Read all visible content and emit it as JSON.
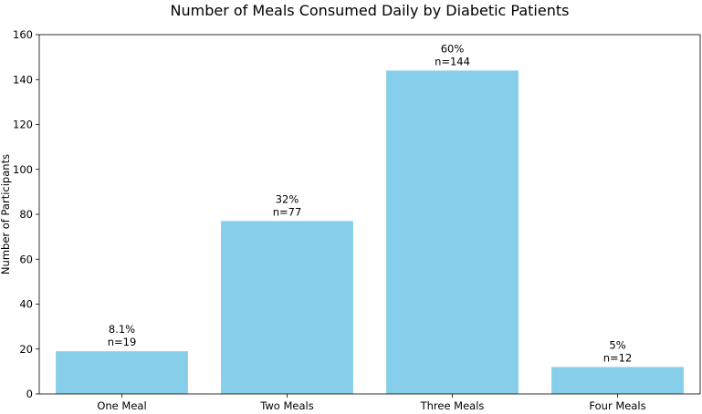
{
  "chart_data": {
    "type": "bar",
    "title": "Number of Meals Consumed Daily by Diabetic Patients",
    "xlabel": "",
    "ylabel": "Number of Participants",
    "categories": [
      "One Meal",
      "Two Meals",
      "Three Meals",
      "Four Meals"
    ],
    "values": [
      19,
      77,
      144,
      12
    ],
    "data_labels": [
      [
        "8.1%",
        "n=19"
      ],
      [
        "32%",
        "n=77"
      ],
      [
        "60%",
        "n=144"
      ],
      [
        "5%",
        "n=12"
      ]
    ],
    "ylim": [
      0,
      160
    ],
    "yticks": [
      "0",
      "20",
      "40",
      "60",
      "80",
      "100",
      "120",
      "140",
      "160"
    ],
    "bar_color": "#87CEEB",
    "grid": false,
    "legend": "none"
  }
}
